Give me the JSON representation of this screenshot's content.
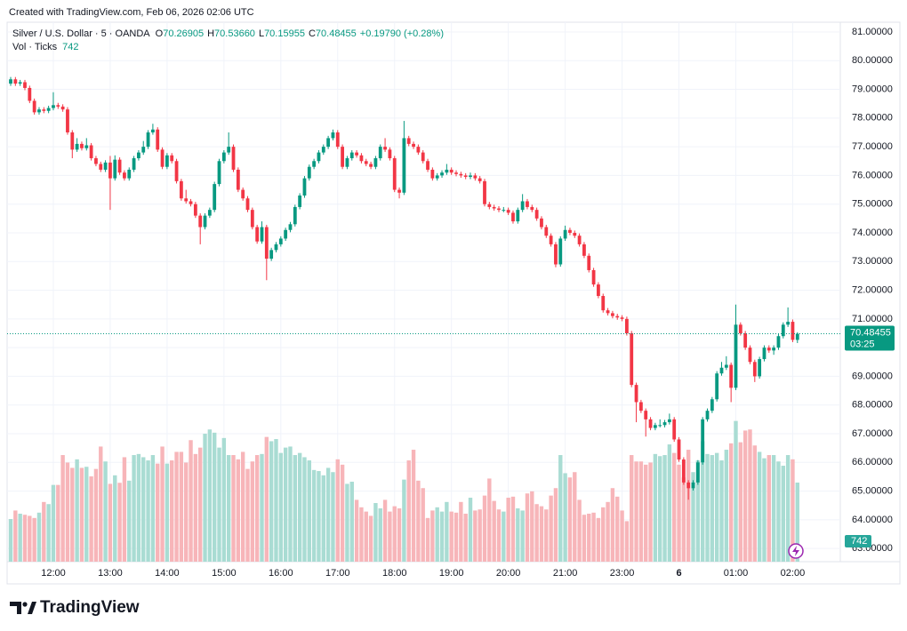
{
  "header": {
    "created": "Created with TradingView.com, Feb 06, 2026 02:06 UTC"
  },
  "logo": {
    "text": "TradingView"
  },
  "chart_data": {
    "type": "candlestick",
    "legend": {
      "symbol": "Silver / U.S. Dollar · 5 · OANDA",
      "fields": [
        {
          "label": "O",
          "value": "70.26905"
        },
        {
          "label": "H",
          "value": "70.53660"
        },
        {
          "label": "L",
          "value": "70.15955"
        },
        {
          "label": "C",
          "value": "70.48455"
        }
      ],
      "change": "+0.19790 (+0.28%)",
      "volume_label": "Vol · Ticks"
    },
    "countdown": "03:25",
    "up_color": "#089981",
    "down_color": "#f23645",
    "volume_up_color": "#a9dcd3",
    "volume_down_color": "#f7b5b9",
    "ylim": [
      62.54,
      81.34
    ],
    "yticks": [
      {
        "value": 63,
        "label": "63.00000"
      },
      {
        "value": 64,
        "label": "64.00000"
      },
      {
        "value": 65,
        "label": "65.00000"
      },
      {
        "value": 66,
        "label": "66.00000"
      },
      {
        "value": 67,
        "label": "67.00000"
      },
      {
        "value": 68,
        "label": "68.00000"
      },
      {
        "value": 69,
        "label": "69.00000"
      },
      {
        "value": 70,
        "label": "70.00000"
      },
      {
        "value": 71,
        "label": "71.00000"
      },
      {
        "value": 72,
        "label": "72.00000"
      },
      {
        "value": 73,
        "label": "73.00000"
      },
      {
        "value": 74,
        "label": "74.00000"
      },
      {
        "value": 75,
        "label": "75.00000"
      },
      {
        "value": 76,
        "label": "76.00000"
      },
      {
        "value": 77,
        "label": "77.00000"
      },
      {
        "value": 78,
        "label": "78.00000"
      },
      {
        "value": 79,
        "label": "79.00000"
      },
      {
        "value": 80,
        "label": "80.00000"
      },
      {
        "value": 81,
        "label": "81.00000"
      }
    ],
    "vlim": [
      0,
      5060
    ],
    "grid": true,
    "categories": [
      null,
      null,
      null,
      null,
      null,
      null,
      null,
      null,
      null,
      "12:00",
      null,
      null,
      null,
      null,
      null,
      null,
      null,
      null,
      null,
      null,
      null,
      "13:00",
      null,
      null,
      null,
      null,
      null,
      null,
      null,
      null,
      null,
      null,
      null,
      "14:00",
      null,
      null,
      null,
      null,
      null,
      null,
      null,
      null,
      null,
      null,
      null,
      "15:00",
      null,
      null,
      null,
      null,
      null,
      null,
      null,
      null,
      null,
      null,
      null,
      "16:00",
      null,
      null,
      null,
      null,
      null,
      null,
      null,
      null,
      null,
      null,
      null,
      "17:00",
      null,
      null,
      null,
      null,
      null,
      null,
      null,
      null,
      null,
      null,
      null,
      "18:00",
      null,
      null,
      null,
      null,
      null,
      null,
      null,
      null,
      null,
      null,
      null,
      "19:00",
      null,
      null,
      null,
      null,
      null,
      null,
      null,
      null,
      null,
      null,
      null,
      "20:00",
      null,
      null,
      null,
      null,
      null,
      null,
      null,
      null,
      null,
      null,
      null,
      "21:00",
      null,
      null,
      null,
      null,
      null,
      null,
      null,
      null,
      null,
      null,
      null,
      "23:00",
      null,
      null,
      null,
      null,
      null,
      null,
      null,
      null,
      null,
      null,
      null,
      "6",
      null,
      null,
      null,
      null,
      null,
      null,
      null,
      null,
      null,
      null,
      null,
      "01:00",
      null,
      null,
      null,
      null,
      null,
      null,
      null,
      null,
      null,
      null,
      null,
      "02:00",
      null
    ],
    "ohlc": [
      [
        79.2,
        79.43,
        79.12,
        79.35
      ],
      [
        79.35,
        79.43,
        79.12,
        79.2
      ],
      [
        79.2,
        79.33,
        79.12,
        79.25
      ],
      [
        79.25,
        79.33,
        78.97,
        79.05
      ],
      [
        79.05,
        79.13,
        78.52,
        78.6
      ],
      [
        78.6,
        78.68,
        78.12,
        78.2
      ],
      [
        78.2,
        78.38,
        78.12,
        78.3
      ],
      [
        78.3,
        78.38,
        78.17,
        78.25
      ],
      [
        78.25,
        78.43,
        78.17,
        78.35
      ],
      [
        78.35,
        78.9,
        78.27,
        78.45
      ],
      [
        78.45,
        78.53,
        78.32,
        78.4
      ],
      [
        78.4,
        78.48,
        78.22,
        78.3
      ],
      [
        78.3,
        78.38,
        77.42,
        77.5
      ],
      [
        77.5,
        77.58,
        76.6,
        76.9
      ],
      [
        76.9,
        77.3,
        76.82,
        77.1
      ],
      [
        77.1,
        77.18,
        76.87,
        76.95
      ],
      [
        76.95,
        77.3,
        76.87,
        77.05
      ],
      [
        77.05,
        77.13,
        76.52,
        76.6
      ],
      [
        76.6,
        76.68,
        76.32,
        76.4
      ],
      [
        76.4,
        76.48,
        76.12,
        76.2
      ],
      [
        76.2,
        76.53,
        76.12,
        76.45
      ],
      [
        76.45,
        76.68,
        74.8,
        75.9
      ],
      [
        75.9,
        76.7,
        75.82,
        76.55
      ],
      [
        76.55,
        76.63,
        76.02,
        76.1
      ],
      [
        76.1,
        76.18,
        75.82,
        75.9
      ],
      [
        75.9,
        76.28,
        75.82,
        76.2
      ],
      [
        76.2,
        76.68,
        76.12,
        76.6
      ],
      [
        76.6,
        76.88,
        76.52,
        76.8
      ],
      [
        76.8,
        77.2,
        76.72,
        77.0
      ],
      [
        77.0,
        77.58,
        76.92,
        77.5
      ],
      [
        77.5,
        77.8,
        77.42,
        77.6
      ],
      [
        77.6,
        77.68,
        76.82,
        76.9
      ],
      [
        76.9,
        76.98,
        76.22,
        76.3
      ],
      [
        76.3,
        76.78,
        76.22,
        76.7
      ],
      [
        76.7,
        76.78,
        76.42,
        76.5
      ],
      [
        76.5,
        76.58,
        75.72,
        75.8
      ],
      [
        75.8,
        75.88,
        75.12,
        75.2
      ],
      [
        75.2,
        75.5,
        75.02,
        75.1
      ],
      [
        75.1,
        75.18,
        74.92,
        75.0
      ],
      [
        75.0,
        75.08,
        74.52,
        74.6
      ],
      [
        74.6,
        74.68,
        73.6,
        74.2
      ],
      [
        74.2,
        74.68,
        74.12,
        74.6
      ],
      [
        74.6,
        74.88,
        74.52,
        74.8
      ],
      [
        74.8,
        75.78,
        74.72,
        75.7
      ],
      [
        75.7,
        76.58,
        75.62,
        76.5
      ],
      [
        76.5,
        76.88,
        76.42,
        76.8
      ],
      [
        76.8,
        77.5,
        76.72,
        77.0
      ],
      [
        77.0,
        77.08,
        76.12,
        76.2
      ],
      [
        76.2,
        76.28,
        75.42,
        75.5
      ],
      [
        75.5,
        75.58,
        75.12,
        75.2
      ],
      [
        75.2,
        75.28,
        74.72,
        74.8
      ],
      [
        74.8,
        74.88,
        74.12,
        74.2
      ],
      [
        74.2,
        74.28,
        73.62,
        73.7
      ],
      [
        73.7,
        74.4,
        73.62,
        74.2
      ],
      [
        74.2,
        74.28,
        72.35,
        73.1
      ],
      [
        73.1,
        73.48,
        73.02,
        73.4
      ],
      [
        73.4,
        73.68,
        73.32,
        73.6
      ],
      [
        73.6,
        73.88,
        73.52,
        73.8
      ],
      [
        73.8,
        74.18,
        73.72,
        74.1
      ],
      [
        74.1,
        74.38,
        74.02,
        74.3
      ],
      [
        74.3,
        74.98,
        74.22,
        74.9
      ],
      [
        74.9,
        75.38,
        74.82,
        75.3
      ],
      [
        75.3,
        75.98,
        75.22,
        75.9
      ],
      [
        75.9,
        76.38,
        75.82,
        76.3
      ],
      [
        76.3,
        76.58,
        76.22,
        76.5
      ],
      [
        76.5,
        76.88,
        76.42,
        76.8
      ],
      [
        76.8,
        77.08,
        76.72,
        77.0
      ],
      [
        77.0,
        77.38,
        76.92,
        77.3
      ],
      [
        77.3,
        77.6,
        77.22,
        77.5
      ],
      [
        77.5,
        77.58,
        76.92,
        77.0
      ],
      [
        77.0,
        77.08,
        76.22,
        76.3
      ],
      [
        76.3,
        76.68,
        76.22,
        76.6
      ],
      [
        76.6,
        76.88,
        76.52,
        76.8
      ],
      [
        76.8,
        76.88,
        76.62,
        76.7
      ],
      [
        76.7,
        76.78,
        76.42,
        76.5
      ],
      [
        76.5,
        76.58,
        76.32,
        76.4
      ],
      [
        76.4,
        76.48,
        76.22,
        76.3
      ],
      [
        76.3,
        76.68,
        76.22,
        76.6
      ],
      [
        76.6,
        77.08,
        76.52,
        77.0
      ],
      [
        77.0,
        77.3,
        76.82,
        76.9
      ],
      [
        76.9,
        76.98,
        76.52,
        76.6
      ],
      [
        76.6,
        76.68,
        75.42,
        75.5
      ],
      [
        75.5,
        75.58,
        75.2,
        75.4
      ],
      [
        75.4,
        77.9,
        75.32,
        77.3
      ],
      [
        77.3,
        77.38,
        77.02,
        77.1
      ],
      [
        77.1,
        77.18,
        76.92,
        77.0
      ],
      [
        77.0,
        77.08,
        76.72,
        76.8
      ],
      [
        76.8,
        76.88,
        76.42,
        76.5
      ],
      [
        76.5,
        76.58,
        76.12,
        76.2
      ],
      [
        76.2,
        76.28,
        75.82,
        75.9
      ],
      [
        75.9,
        76.08,
        75.82,
        76.0
      ],
      [
        76.0,
        76.18,
        75.92,
        76.1
      ],
      [
        76.1,
        76.4,
        76.02,
        76.2
      ],
      [
        76.2,
        76.28,
        76.02,
        76.1
      ],
      [
        76.1,
        76.18,
        75.97,
        76.05
      ],
      [
        76.05,
        76.13,
        75.92,
        76.0
      ],
      [
        76.0,
        76.08,
        75.87,
        75.95
      ],
      [
        75.95,
        76.1,
        75.87,
        76.0
      ],
      [
        76.0,
        76.08,
        75.82,
        75.9
      ],
      [
        75.9,
        75.98,
        75.72,
        75.8
      ],
      [
        75.8,
        75.88,
        74.92,
        75.0
      ],
      [
        75.0,
        75.08,
        74.82,
        74.9
      ],
      [
        74.9,
        74.98,
        74.77,
        74.85
      ],
      [
        74.85,
        74.93,
        74.72,
        74.8
      ],
      [
        74.8,
        74.9,
        74.72,
        74.8
      ],
      [
        74.8,
        74.88,
        74.62,
        74.7
      ],
      [
        74.7,
        74.78,
        74.32,
        74.4
      ],
      [
        74.4,
        74.88,
        74.32,
        74.8
      ],
      [
        74.8,
        75.35,
        74.72,
        75.1
      ],
      [
        75.1,
        75.18,
        74.82,
        74.9
      ],
      [
        74.9,
        74.98,
        74.72,
        74.8
      ],
      [
        74.8,
        74.88,
        74.42,
        74.5
      ],
      [
        74.5,
        74.58,
        74.12,
        74.2
      ],
      [
        74.2,
        74.28,
        73.82,
        73.9
      ],
      [
        73.9,
        73.98,
        73.52,
        73.6
      ],
      [
        73.6,
        73.68,
        72.8,
        72.9
      ],
      [
        72.9,
        73.88,
        72.82,
        73.8
      ],
      [
        73.8,
        74.25,
        73.72,
        74.1
      ],
      [
        74.1,
        74.18,
        73.92,
        74.0
      ],
      [
        74.0,
        74.08,
        73.82,
        73.9
      ],
      [
        73.9,
        73.98,
        73.52,
        73.6
      ],
      [
        73.6,
        73.68,
        73.12,
        73.2
      ],
      [
        73.2,
        73.28,
        72.62,
        72.7
      ],
      [
        72.7,
        72.78,
        72.12,
        72.2
      ],
      [
        72.2,
        72.28,
        71.72,
        71.8
      ],
      [
        71.8,
        71.88,
        71.22,
        71.3
      ],
      [
        71.3,
        71.38,
        71.12,
        71.2
      ],
      [
        71.2,
        71.28,
        71.02,
        71.1
      ],
      [
        71.1,
        71.18,
        70.97,
        71.05
      ],
      [
        71.05,
        71.13,
        70.92,
        71.0
      ],
      [
        71.0,
        71.08,
        70.42,
        70.5
      ],
      [
        70.5,
        70.58,
        68.62,
        68.7
      ],
      [
        68.7,
        68.78,
        67.4,
        68.1
      ],
      [
        68.1,
        68.18,
        67.72,
        67.8
      ],
      [
        67.8,
        67.88,
        66.9,
        67.5
      ],
      [
        67.5,
        67.58,
        67.12,
        67.2
      ],
      [
        67.2,
        67.38,
        67.12,
        67.3
      ],
      [
        67.3,
        67.5,
        67.22,
        67.3
      ],
      [
        67.3,
        67.48,
        67.22,
        67.4
      ],
      [
        67.4,
        67.7,
        67.32,
        67.5
      ],
      [
        67.5,
        67.58,
        66.72,
        66.8
      ],
      [
        66.8,
        66.88,
        66.02,
        66.1
      ],
      [
        66.1,
        66.18,
        65.22,
        65.3
      ],
      [
        65.3,
        65.38,
        64.7,
        65.1
      ],
      [
        65.1,
        65.38,
        65.02,
        65.3
      ],
      [
        65.3,
        66.08,
        65.22,
        66.0
      ],
      [
        66.0,
        67.58,
        65.92,
        67.5
      ],
      [
        67.5,
        67.88,
        67.42,
        67.8
      ],
      [
        67.8,
        68.28,
        67.72,
        68.2
      ],
      [
        68.2,
        69.18,
        68.12,
        69.1
      ],
      [
        69.1,
        69.5,
        69.02,
        69.3
      ],
      [
        69.3,
        69.7,
        69.22,
        69.4
      ],
      [
        69.4,
        69.48,
        68.1,
        68.6
      ],
      [
        68.6,
        71.5,
        68.52,
        70.8
      ],
      [
        70.8,
        70.88,
        70.42,
        70.5
      ],
      [
        70.5,
        70.58,
        69.92,
        70.0
      ],
      [
        70.0,
        70.08,
        69.42,
        69.5
      ],
      [
        69.5,
        69.58,
        68.8,
        69.0
      ],
      [
        69.0,
        69.68,
        68.92,
        69.6
      ],
      [
        69.6,
        70.08,
        69.52,
        70.0
      ],
      [
        70.0,
        70.08,
        69.82,
        69.9
      ],
      [
        69.9,
        70.08,
        69.75,
        70.0
      ],
      [
        70.0,
        70.48,
        69.92,
        70.4
      ],
      [
        70.4,
        70.88,
        70.32,
        70.8
      ],
      [
        70.8,
        71.4,
        70.72,
        70.9
      ],
      [
        70.9,
        70.98,
        70.19,
        70.27
      ],
      [
        70.26905,
        70.5366,
        70.15955,
        70.48455
      ]
    ],
    "volume": [
      400,
      480,
      450,
      440,
      430,
      410,
      460,
      560,
      540,
      720,
      720,
      1000,
      930,
      880,
      960,
      880,
      890,
      800,
      870,
      1080,
      940,
      730,
      810,
      740,
      980,
      760,
      1000,
      1010,
      980,
      950,
      1000,
      920,
      1080,
      920,
      950,
      1030,
      1030,
      930,
      1140,
      1010,
      1070,
      1200,
      1240,
      1210,
      1070,
      1160,
      1000,
      1000,
      960,
      1030,
      870,
      940,
      1000,
      1010,
      1170,
      1130,
      1150,
      1020,
      1070,
      1080,
      1000,
      1020,
      980,
      950,
      860,
      850,
      810,
      880,
      840,
      960,
      910,
      730,
      750,
      580,
      510,
      470,
      430,
      550,
      500,
      580,
      470,
      520,
      500,
      770,
      950,
      1050,
      760,
      690,
      410,
      480,
      510,
      470,
      560,
      470,
      460,
      560,
      450,
      600,
      480,
      490,
      620,
      780,
      570,
      490,
      470,
      600,
      610,
      500,
      480,
      640,
      660,
      540,
      520,
      490,
      620,
      690,
      1000,
      830,
      790,
      840,
      580,
      440,
      450,
      460,
      410,
      510,
      560,
      690,
      610,
      480,
      380,
      1000,
      940,
      940,
      910,
      930,
      1010,
      990,
      1000,
      1100,
      1020,
      910,
      790,
      1050,
      840,
      950,
      1130,
      1010,
      1000,
      1020,
      950,
      1050,
      1110,
      1320,
      1120,
      1230,
      1240,
      1090,
      1030,
      970,
      1000,
      1000,
      940,
      900,
      1000,
      960,
      742
    ]
  }
}
